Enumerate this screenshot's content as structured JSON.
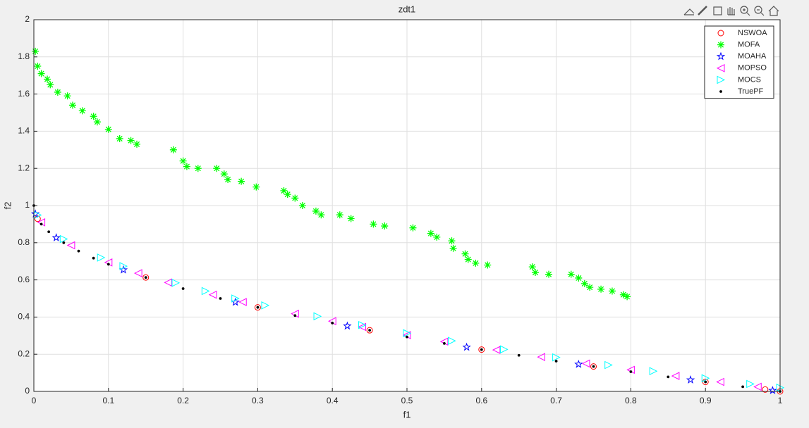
{
  "chart_data": {
    "type": "scatter",
    "title": "zdt1",
    "x_label": "f1",
    "y_label": "f2",
    "xlim": [
      0,
      1
    ],
    "ylim": [
      0,
      2
    ],
    "xticks": [
      0,
      0.1,
      0.2,
      0.3,
      0.4,
      0.5,
      0.6,
      0.7,
      0.8,
      0.9,
      1
    ],
    "yticks": [
      0,
      0.2,
      0.4,
      0.6,
      0.8,
      1,
      1.2,
      1.4,
      1.6,
      1.8,
      2
    ],
    "grid": true,
    "legend": "top-right",
    "series": [
      {
        "name": "NSWOA",
        "color": "#ff0000",
        "marker": "o",
        "x": [
          0.005,
          0.15,
          0.3,
          0.45,
          0.6,
          0.75,
          0.9,
          0.98,
          1.0
        ],
        "values": [
          0.929,
          0.613,
          0.452,
          0.329,
          0.225,
          0.134,
          0.051,
          0.01,
          0
        ]
      },
      {
        "name": "MOFA",
        "color": "#00ff00",
        "marker": "*",
        "x": [
          0.002,
          0.005,
          0.01,
          0.018,
          0.022,
          0.032,
          0.045,
          0.052,
          0.065,
          0.08,
          0.085,
          0.1,
          0.115,
          0.13,
          0.138,
          0.187,
          0.2,
          0.205,
          0.22,
          0.245,
          0.255,
          0.26,
          0.278,
          0.298,
          0.335,
          0.34,
          0.35,
          0.36,
          0.378,
          0.385,
          0.41,
          0.425,
          0.455,
          0.47,
          0.508,
          0.532,
          0.54,
          0.56,
          0.562,
          0.578,
          0.582,
          0.592,
          0.608,
          0.668,
          0.672,
          0.69,
          0.72,
          0.73,
          0.738,
          0.745,
          0.76,
          0.775,
          0.79,
          0.795
        ],
        "values": [
          1.83,
          1.75,
          1.71,
          1.68,
          1.65,
          1.61,
          1.59,
          1.54,
          1.51,
          1.48,
          1.45,
          1.41,
          1.36,
          1.35,
          1.33,
          1.3,
          1.24,
          1.21,
          1.2,
          1.2,
          1.17,
          1.14,
          1.13,
          1.1,
          1.08,
          1.06,
          1.04,
          1.0,
          0.97,
          0.95,
          0.95,
          0.93,
          0.9,
          0.89,
          0.88,
          0.85,
          0.83,
          0.81,
          0.77,
          0.74,
          0.71,
          0.69,
          0.68,
          0.67,
          0.64,
          0.63,
          0.63,
          0.61,
          0.58,
          0.56,
          0.55,
          0.54,
          0.52,
          0.51
        ]
      },
      {
        "name": "MOAHA",
        "color": "#0000ff",
        "marker": "p",
        "x": [
          0.002,
          0.03,
          0.12,
          0.27,
          0.42,
          0.58,
          0.73,
          0.88,
          0.99
        ],
        "values": [
          0.955,
          0.827,
          0.654,
          0.48,
          0.352,
          0.238,
          0.146,
          0.062,
          0.005
        ]
      },
      {
        "name": "MOPSO",
        "color": "#ff00ff",
        "marker": "<",
        "x": [
          0.01,
          0.05,
          0.1,
          0.14,
          0.18,
          0.24,
          0.28,
          0.35,
          0.4,
          0.44,
          0.5,
          0.55,
          0.62,
          0.68,
          0.74,
          0.8,
          0.86,
          0.92,
          0.97
        ],
        "values": [
          0.91,
          0.786,
          0.694,
          0.636,
          0.586,
          0.52,
          0.481,
          0.418,
          0.378,
          0.347,
          0.303,
          0.268,
          0.223,
          0.185,
          0.15,
          0.116,
          0.083,
          0.051,
          0.025
        ]
      },
      {
        "name": "MOCS",
        "color": "#00ffff",
        "marker": ">",
        "x": [
          0.005,
          0.04,
          0.09,
          0.12,
          0.19,
          0.23,
          0.27,
          0.31,
          0.38,
          0.44,
          0.5,
          0.56,
          0.63,
          0.7,
          0.77,
          0.83,
          0.9,
          0.96,
          1.0
        ],
        "values": [
          0.949,
          0.82,
          0.72,
          0.674,
          0.584,
          0.54,
          0.5,
          0.463,
          0.404,
          0.357,
          0.313,
          0.272,
          0.226,
          0.183,
          0.142,
          0.109,
          0.071,
          0.04,
          0.02
        ]
      },
      {
        "name": "TruePF",
        "color": "#000000",
        "marker": ".",
        "x": [
          0,
          0.01,
          0.02,
          0.04,
          0.06,
          0.08,
          0.1,
          0.15,
          0.2,
          0.25,
          0.3,
          0.35,
          0.4,
          0.45,
          0.5,
          0.55,
          0.6,
          0.65,
          0.7,
          0.75,
          0.8,
          0.85,
          0.9,
          0.95,
          1
        ],
        "values": [
          1,
          0.9,
          0.859,
          0.8,
          0.755,
          0.717,
          0.684,
          0.613,
          0.553,
          0.5,
          0.452,
          0.408,
          0.368,
          0.329,
          0.293,
          0.258,
          0.225,
          0.194,
          0.163,
          0.134,
          0.106,
          0.078,
          0.051,
          0.025,
          0
        ]
      }
    ]
  }
}
